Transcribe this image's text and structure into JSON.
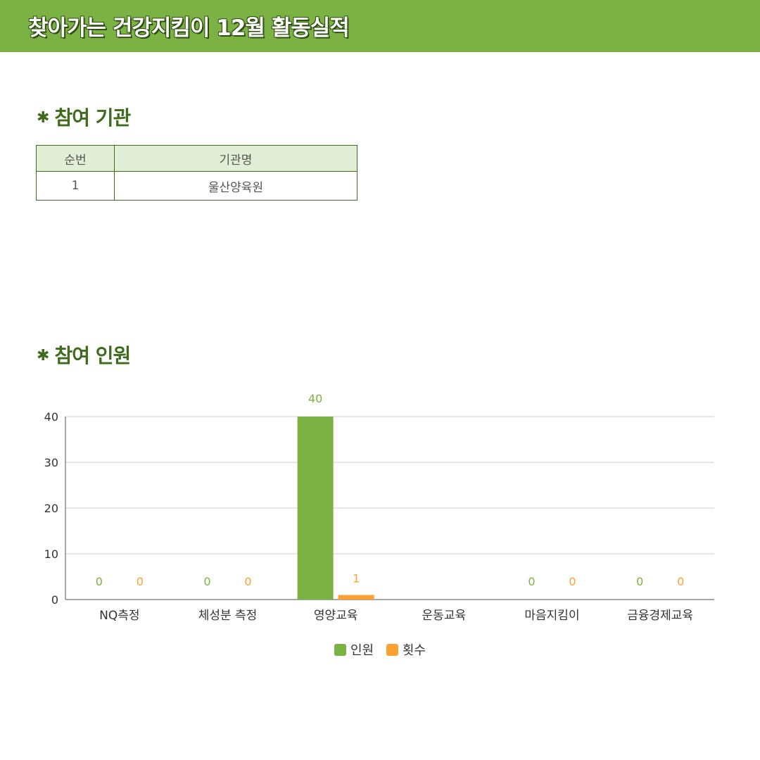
{
  "header": {
    "title": "찾아가는 건강지킴이 12월 활동실적"
  },
  "sections": {
    "org": {
      "bullet": "✱",
      "title": "참여 기관"
    },
    "people": {
      "bullet": "✱",
      "title": "참여 인원"
    }
  },
  "org_table": {
    "headers": [
      "순번",
      "기관명"
    ],
    "rows": [
      [
        "1",
        "울산양육원"
      ]
    ]
  },
  "colors": {
    "header_bg": "#7cb244",
    "series_people": "#7cb244",
    "series_count": "#fba232",
    "title_green": "#3e6b1c"
  },
  "chart_data": {
    "type": "bar",
    "categories": [
      "NQ측정",
      "체성분 측정",
      "영양교육",
      "운동교육",
      "마음지킴이",
      "금융경제교육"
    ],
    "series": [
      {
        "name": "인원",
        "values": [
          0,
          0,
          40,
          null,
          0,
          0
        ],
        "color": "#7cb244"
      },
      {
        "name": "횟수",
        "values": [
          0,
          0,
          1,
          null,
          0,
          0
        ],
        "color": "#fba232"
      }
    ],
    "ylim": [
      0,
      40
    ],
    "yticks": [
      0,
      10,
      20,
      30,
      40
    ],
    "grid": true,
    "legend": "bottom",
    "title": "",
    "xlabel": "",
    "ylabel": ""
  }
}
